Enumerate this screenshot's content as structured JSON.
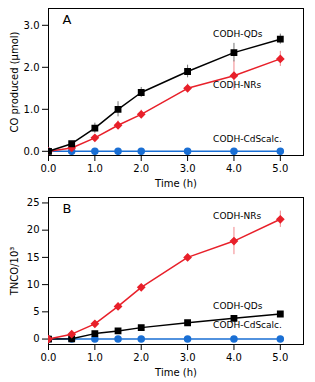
{
  "chart_data": [
    {
      "type": "line",
      "title": "A",
      "xlabel": "Time (h)",
      "ylabel": "CO produced (μmol)",
      "x": [
        0,
        0.5,
        1.0,
        1.5,
        2.0,
        3.0,
        4.0,
        5.0
      ],
      "series": [
        {
          "color": "#000000",
          "marker": "square",
          "values": [
            0,
            0.18,
            0.55,
            1.0,
            1.4,
            1.9,
            2.35,
            2.67
          ],
          "errors": [
            0,
            0.05,
            0.12,
            0.18,
            0.12,
            0.15,
            0.22,
            0.12
          ]
        },
        {
          "color": "#e8202a",
          "marker": "diamond",
          "values": [
            0,
            0.08,
            0.32,
            0.62,
            0.88,
            1.5,
            1.8,
            2.2
          ],
          "errors": [
            0,
            0.05,
            0.05,
            0.1,
            0.1,
            0.1,
            0.35,
            0.18
          ]
        },
        {
          "color": "#1a6fd4",
          "marker": "circle",
          "values": [
            0,
            0,
            0,
            0,
            0,
            0,
            0,
            0
          ],
          "errors": [
            0,
            0,
            0,
            0,
            0,
            0,
            0,
            0
          ]
        }
      ],
      "xlim": [
        0,
        5.5
      ],
      "ylim": [
        -0.1,
        3.4
      ],
      "xticks": [
        0,
        1,
        2,
        3,
        4,
        5
      ],
      "yticks": [
        0,
        1,
        2,
        3
      ],
      "annotations": [
        {
          "text": "CODH-QDs",
          "x": 3.55,
          "y": 2.8
        },
        {
          "text": "CODH-NRs",
          "x": 3.55,
          "y": 1.58
        },
        {
          "text": "CODH-CdScalc.",
          "x": 3.55,
          "y": 0.28
        }
      ]
    },
    {
      "type": "line",
      "title": "B",
      "xlabel": "Time (h)",
      "ylabel": "TNCO/10³",
      "x": [
        0,
        0.5,
        1.0,
        1.5,
        2.0,
        3.0,
        4.0,
        5.0
      ],
      "series": [
        {
          "color": "#e8202a",
          "marker": "diamond",
          "values": [
            0,
            0.9,
            2.8,
            6.0,
            9.5,
            15.0,
            18.0,
            22.0
          ],
          "errors": [
            0,
            0.2,
            0.3,
            0.4,
            0.5,
            0.5,
            2.5,
            1.5
          ]
        },
        {
          "color": "#000000",
          "marker": "square",
          "values": [
            0,
            0.05,
            1.0,
            1.5,
            2.1,
            3.0,
            3.8,
            4.6
          ],
          "errors": [
            0,
            0.05,
            0.1,
            0.1,
            0.1,
            0.15,
            0.2,
            0.2
          ]
        },
        {
          "color": "#1a6fd4",
          "marker": "circle",
          "values": [
            0,
            0,
            0,
            0,
            0,
            0,
            0,
            0
          ],
          "errors": [
            0,
            0,
            0,
            0,
            0,
            0,
            0,
            0
          ]
        }
      ],
      "xlim": [
        0,
        5.5
      ],
      "ylim": [
        -1,
        26
      ],
      "xticks": [
        0,
        1,
        2,
        3,
        4,
        5
      ],
      "yticks": [
        0,
        5,
        10,
        15,
        20,
        25
      ],
      "annotations": [
        {
          "text": "CODH-NRs",
          "x": 3.55,
          "y": 22.5
        },
        {
          "text": "CODH-QDs",
          "x": 3.55,
          "y": 6.0
        },
        {
          "text": "CODH-CdScalc.",
          "x": 3.55,
          "y": 2.5
        }
      ]
    }
  ]
}
